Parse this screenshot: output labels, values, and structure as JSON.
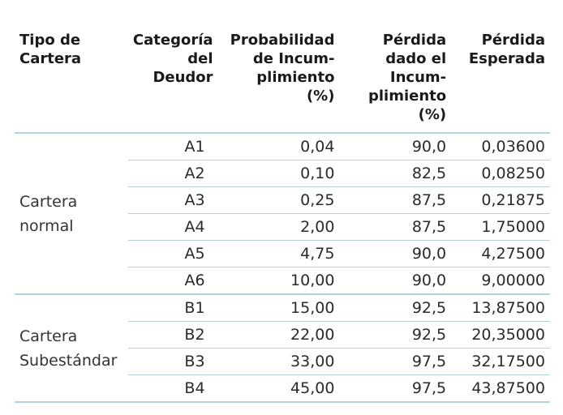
{
  "headers": {
    "tipo": [
      "Tipo de",
      "Cartera"
    ],
    "categoria": [
      "Categoría",
      "del",
      "Deudor"
    ],
    "probabilidad": [
      "Probabilidad",
      "de Incum-",
      "plimiento",
      "(%)"
    ],
    "perdida_dado": [
      "Pérdida",
      "dado el",
      "Incum-",
      "plimiento",
      "(%)"
    ],
    "perdida_esperada": [
      "Pérdida",
      "Esperada"
    ]
  },
  "groups": {
    "normal": [
      "Cartera",
      "normal"
    ],
    "subestandar": [
      "Cartera",
      "Subestándar"
    ]
  },
  "rows": [
    {
      "cat": "A1",
      "prob": "0,04",
      "pdi": "90,0",
      "pe": "0,03600"
    },
    {
      "cat": "A2",
      "prob": "0,10",
      "pdi": "82,5",
      "pe": "0,08250"
    },
    {
      "cat": "A3",
      "prob": "0,25",
      "pdi": "87,5",
      "pe": "0,21875"
    },
    {
      "cat": "A4",
      "prob": "2,00",
      "pdi": "87,5",
      "pe": "1,75000"
    },
    {
      "cat": "A5",
      "prob": "4,75",
      "pdi": "90,0",
      "pe": "4,27500"
    },
    {
      "cat": "A6",
      "prob": "10,00",
      "pdi": "90,0",
      "pe": "9,00000"
    },
    {
      "cat": "B1",
      "prob": "15,00",
      "pdi": "92,5",
      "pe": "13,87500"
    },
    {
      "cat": "B2",
      "prob": "22,00",
      "pdi": "92,5",
      "pe": "20,35000"
    },
    {
      "cat": "B3",
      "prob": "33,00",
      "pdi": "97,5",
      "pe": "32,17500"
    },
    {
      "cat": "B4",
      "prob": "45,00",
      "pdi": "97,5",
      "pe": "43,87500"
    }
  ],
  "colors": {
    "rule": "#b5d3dd",
    "text": "#1a1a1a"
  }
}
